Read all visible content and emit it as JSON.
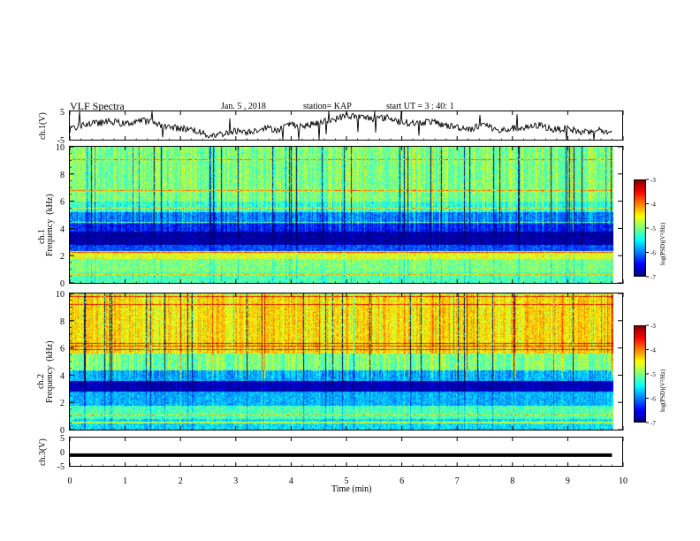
{
  "header": {
    "title": "VLF Spectra",
    "date": "Jan. 5 , 2018",
    "station": "station= KAP",
    "start": "start  UT =  3 : 40: 1"
  },
  "chart_data": [
    {
      "type": "line",
      "name": "ch1-waveform",
      "ylabel": "ch.1(V)",
      "ylim": [
        -5,
        5
      ],
      "yticks": [
        "5",
        "-5"
      ],
      "xlim": [
        0,
        10
      ],
      "x": [
        0,
        0.25,
        0.5,
        0.75,
        1.0,
        1.25,
        1.5,
        1.75,
        2.0,
        2.25,
        2.5,
        2.75,
        3.0,
        3.25,
        3.5,
        3.75,
        4.0,
        4.25,
        4.5,
        4.75,
        5.0,
        5.25,
        5.5,
        5.75,
        6.0,
        6.25,
        6.5,
        6.75,
        7.0,
        7.25,
        7.5,
        7.75,
        8.0,
        8.25,
        8.5,
        8.75,
        9.0,
        9.25,
        9.5,
        9.8
      ],
      "values": [
        -1.5,
        0.5,
        0.8,
        1.5,
        0.5,
        1.8,
        1.2,
        -0.5,
        -1.0,
        -1.5,
        -3.5,
        -3.0,
        -1.8,
        -2.2,
        -0.8,
        -1.5,
        0.5,
        -0.2,
        1.0,
        2.0,
        3.5,
        3.0,
        2.5,
        2.8,
        1.2,
        0.8,
        1.5,
        0.2,
        -0.5,
        -1.2,
        0.5,
        -2.0,
        -1.0,
        -0.8,
        0.2,
        -1.5,
        -1.0,
        -2.5,
        -1.2,
        -3.0
      ]
    },
    {
      "type": "heatmap",
      "name": "ch1-spectrogram",
      "ylabel": "ch.1\nFrequency  (kHz)",
      "ylim": [
        0,
        10
      ],
      "yticks": [
        "0",
        "2",
        "4",
        "6",
        "8",
        "10"
      ],
      "xlim": [
        0,
        10
      ],
      "colorbar": {
        "label": "log(PSD)(V²/Hz)",
        "range": [
          -7,
          -3
        ],
        "ticks": [
          "-3",
          "-4",
          "-5",
          "-6",
          "-7"
        ]
      },
      "bands": [
        {
          "from": 0,
          "to": 0.8,
          "level": -5.2
        },
        {
          "from": 0.8,
          "to": 1.8,
          "level": -5.0
        },
        {
          "from": 1.8,
          "to": 2.4,
          "level": -4.6
        },
        {
          "from": 2.4,
          "to": 2.8,
          "level": -6.2
        },
        {
          "from": 2.8,
          "to": 3.8,
          "level": -6.9
        },
        {
          "from": 3.8,
          "to": 4.4,
          "level": -6.4
        },
        {
          "from": 4.4,
          "to": 5.2,
          "level": -6.0
        },
        {
          "from": 5.2,
          "to": 6.0,
          "level": -5.3
        },
        {
          "from": 6.0,
          "to": 10.0,
          "level": -5.0
        }
      ]
    },
    {
      "type": "heatmap",
      "name": "ch2-spectrogram",
      "ylabel": "ch.2\nFrequency  (kHz)",
      "ylim": [
        0,
        10
      ],
      "yticks": [
        "0",
        "2",
        "4",
        "6",
        "8",
        "10"
      ],
      "xlim": [
        0,
        10
      ],
      "colorbar": {
        "label": "log(PSD)(V²/Hz)",
        "range": [
          -7,
          -3
        ],
        "ticks": [
          "-3",
          "-4",
          "-5",
          "-6",
          "-7"
        ]
      },
      "bands": [
        {
          "from": 0,
          "to": 0.8,
          "level": -5.6
        },
        {
          "from": 0.8,
          "to": 1.8,
          "level": -5.2
        },
        {
          "from": 1.8,
          "to": 2.8,
          "level": -5.8
        },
        {
          "from": 2.8,
          "to": 3.6,
          "level": -6.8
        },
        {
          "from": 3.6,
          "to": 4.4,
          "level": -5.8
        },
        {
          "from": 4.4,
          "to": 5.6,
          "level": -5.0
        },
        {
          "from": 5.6,
          "to": 10.0,
          "level": -4.4
        }
      ]
    },
    {
      "type": "line",
      "name": "ch3-waveform",
      "ylabel": "ch.3(V)",
      "ylim": [
        -5,
        5
      ],
      "yticks": [
        "5",
        "0",
        "-5"
      ],
      "xlim": [
        0,
        10
      ],
      "x": [
        0,
        9.8
      ],
      "values": [
        -1.2,
        -1.2
      ],
      "xlabel": "Time  (min)",
      "xticks": [
        "0",
        "1",
        "2",
        "3",
        "4",
        "5",
        "6",
        "7",
        "8",
        "9",
        "10"
      ]
    }
  ]
}
